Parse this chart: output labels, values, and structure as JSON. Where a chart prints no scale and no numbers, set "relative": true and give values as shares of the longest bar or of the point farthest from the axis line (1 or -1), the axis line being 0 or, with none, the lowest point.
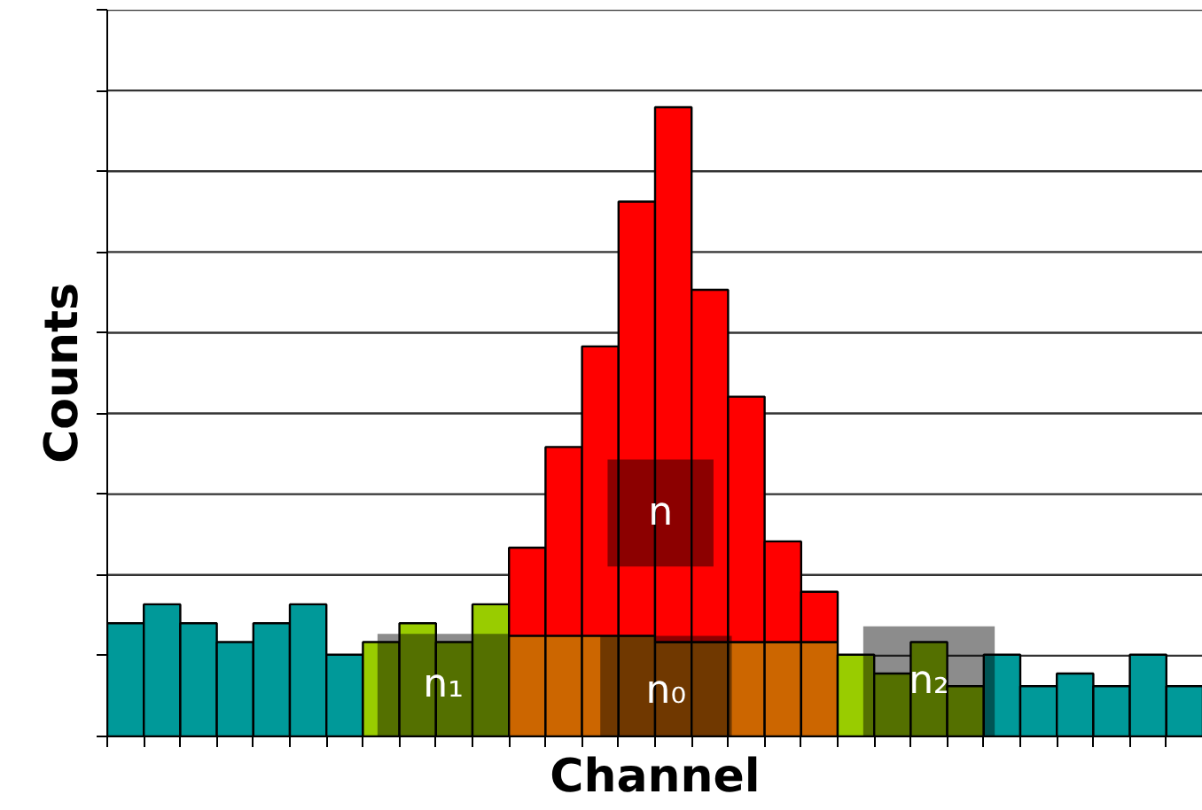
{
  "chart_data": {
    "type": "bar",
    "relative": true,
    "stacked": true,
    "xlabel": "Channel",
    "ylabel": "Counts",
    "grid": "y",
    "categories": [
      null,
      null,
      null,
      null,
      null,
      null,
      null,
      null,
      null,
      null,
      null,
      null,
      null,
      null,
      null,
      null,
      null,
      null,
      null,
      null,
      null,
      null,
      null,
      null,
      null,
      null,
      null,
      null,
      null,
      null
    ],
    "series": [
      {
        "colors": [
          "#009999",
          "#009999",
          "#009999",
          "#009999",
          "#009999",
          "#009999",
          "#009999",
          "#99cc00",
          "#99cc00",
          "#99cc00",
          "#99cc00",
          "#cc6600",
          "#cc6600",
          "#cc6600",
          "#cc6600",
          "#cc6600",
          "#cc6600",
          "#cc6600",
          "#cc6600",
          "#cc6600",
          "#99cc00",
          "#99cc00",
          "#99cc00",
          "#99cc00",
          "#009999",
          "#009999",
          "#009999",
          "#009999",
          "#009999",
          "#009999"
        ],
        "values": [
          0.18,
          0.21,
          0.18,
          0.15,
          0.18,
          0.21,
          0.13,
          0.15,
          0.18,
          0.15,
          0.21,
          0.16,
          0.16,
          0.16,
          0.16,
          0.15,
          0.15,
          0.15,
          0.15,
          0.15,
          0.13,
          0.1,
          0.15,
          0.08,
          0.13,
          0.08,
          0.1,
          0.08,
          0.13,
          0.08
        ]
      },
      {
        "color": "#ff0000",
        "values": [
          null,
          null,
          null,
          null,
          null,
          null,
          null,
          null,
          null,
          null,
          null,
          0.14,
          0.3,
          0.46,
          0.69,
          0.85,
          0.56,
          0.39,
          0.16,
          0.08,
          null,
          null,
          null,
          null,
          null,
          null,
          null,
          null,
          null,
          null
        ]
      }
    ],
    "annotations": [
      "n₁",
      "n₀",
      "n₂",
      "n"
    ]
  }
}
